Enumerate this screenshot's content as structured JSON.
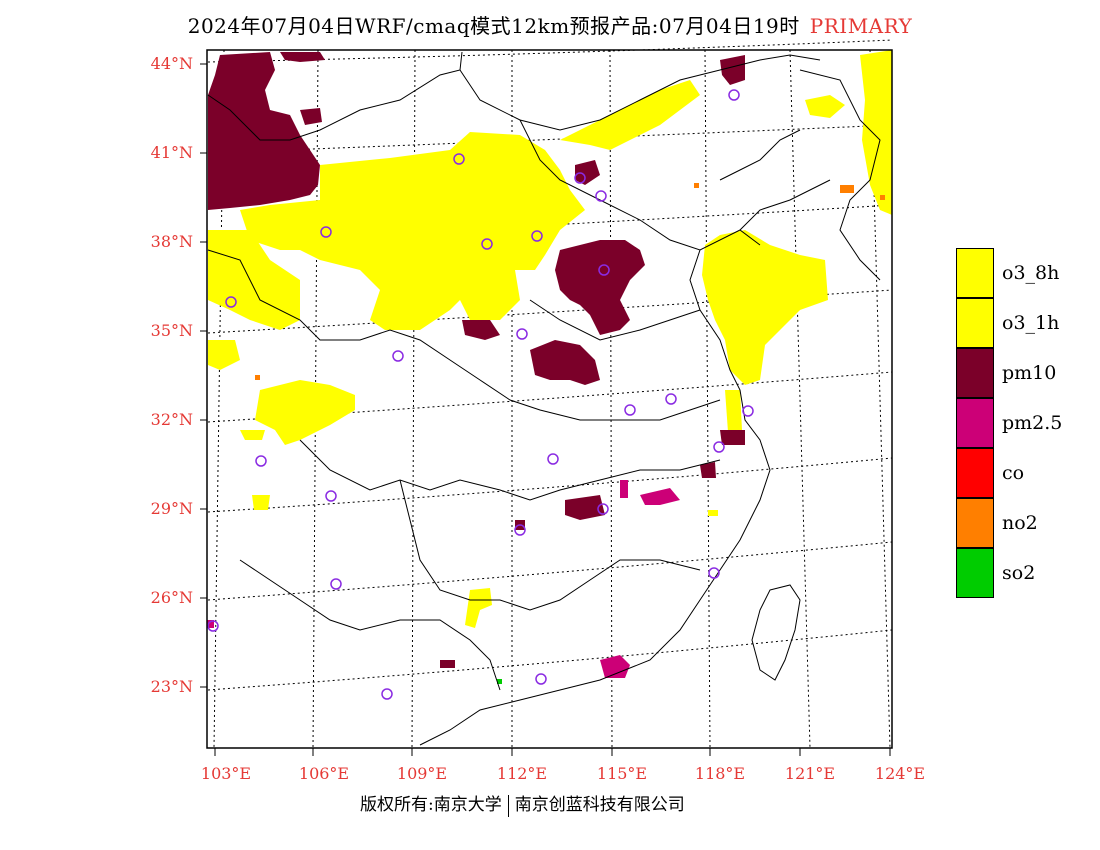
{
  "title": {
    "main": "2024年07月04日WRF/cmaq模式12km预报产品:07月04日19时",
    "tag": "PRIMARY",
    "tag_color": "#e53935"
  },
  "lat_labels": [
    "44°N",
    "41°N",
    "38°N",
    "35°N",
    "32°N",
    "29°N",
    "26°N",
    "23°N"
  ],
  "lon_labels": [
    "103°E",
    "106°E",
    "109°E",
    "112°E",
    "115°E",
    "118°E",
    "121°E",
    "124°E"
  ],
  "legend": [
    {
      "label": "o3_8h",
      "color": "#ffff00"
    },
    {
      "label": "o3_1h",
      "color": "#ffff00"
    },
    {
      "label": "pm10",
      "color": "#7b0029"
    },
    {
      "label": "pm2.5",
      "color": "#cc0077"
    },
    {
      "label": "co",
      "color": "#ff0000"
    },
    {
      "label": "no2",
      "color": "#ff7f00"
    },
    {
      "label": "so2",
      "color": "#00cc00"
    }
  ],
  "footer": {
    "left": "版权所有:南京大学",
    "right": "南京创蓝科技有限公司"
  }
}
